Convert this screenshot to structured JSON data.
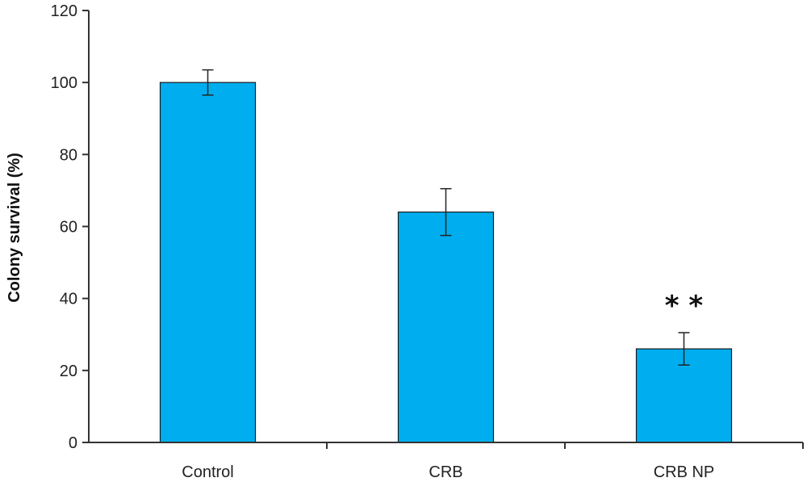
{
  "chart_data": {
    "type": "bar",
    "title": "",
    "xlabel": "",
    "ylabel": "Colony survival (%)",
    "ylim": [
      0,
      120
    ],
    "yticks": [
      0,
      20,
      40,
      60,
      80,
      100,
      120
    ],
    "categories": [
      "Control",
      "CRB",
      "CRB NP"
    ],
    "values": [
      100,
      64,
      26
    ],
    "errors": [
      3.5,
      6.5,
      4.5
    ],
    "annotations": [
      {
        "category": "CRB NP",
        "text": "* *"
      }
    ],
    "bar_color": "#00AEEF",
    "grid": false,
    "legend": "none"
  }
}
